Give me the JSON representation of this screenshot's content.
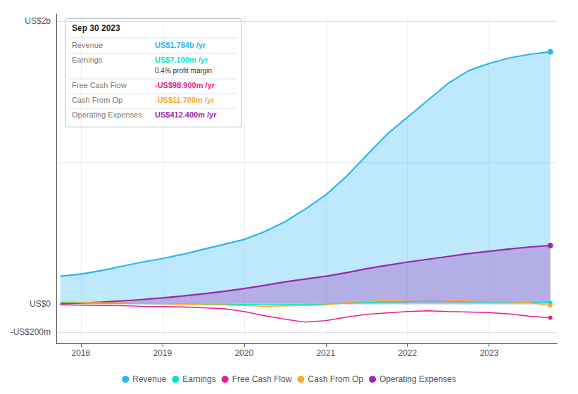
{
  "chart_data": {
    "type": "line",
    "x": [
      2017.75,
      2018.0,
      2018.25,
      2018.5,
      2018.75,
      2019.0,
      2019.25,
      2019.5,
      2019.75,
      2020.0,
      2020.25,
      2020.5,
      2020.75,
      2021.0,
      2021.25,
      2021.5,
      2021.75,
      2022.0,
      2022.25,
      2022.5,
      2022.75,
      2023.0,
      2023.25,
      2023.5,
      2023.75
    ],
    "xlim": [
      2017.7,
      2023.83
    ],
    "xticks": [
      2018,
      2019,
      2020,
      2021,
      2022,
      2023
    ],
    "ylim": [
      -280,
      2050
    ],
    "yticks": [
      {
        "value": 2000,
        "label": "US$2b"
      },
      {
        "value": 1000,
        "label": ""
      },
      {
        "value": 0,
        "label": "US$0"
      },
      {
        "value": -200,
        "label": "-US$200m"
      }
    ],
    "grid": true,
    "legend": "bottom",
    "series": [
      {
        "name": "Revenue",
        "type": "area",
        "color": "#29b6f6",
        "values": [
          195,
          210,
          235,
          265,
          295,
          320,
          350,
          385,
          420,
          455,
          510,
          580,
          670,
          770,
          900,
          1050,
          1200,
          1320,
          1440,
          1560,
          1650,
          1700,
          1740,
          1765,
          1784
        ]
      },
      {
        "name": "Earnings",
        "type": "line",
        "color": "#00e5cc",
        "values": [
          8,
          6,
          4,
          2,
          1,
          0,
          -1,
          -2,
          -3,
          -5,
          -8,
          -6,
          -4,
          -2,
          4,
          8,
          12,
          15,
          18,
          16,
          14,
          12,
          10,
          9,
          7
        ]
      },
      {
        "name": "Free Cash Flow",
        "type": "line",
        "color": "#e91e8c",
        "values": [
          -8,
          -10,
          -12,
          -14,
          -18,
          -20,
          -22,
          -28,
          -35,
          -55,
          -85,
          -110,
          -130,
          -120,
          -95,
          -75,
          -65,
          -55,
          -50,
          -55,
          -58,
          -62,
          -72,
          -88,
          -99
        ]
      },
      {
        "name": "Cash From Op",
        "type": "line",
        "color": "#ffa726",
        "values": [
          12,
          10,
          8,
          5,
          2,
          0,
          -3,
          -6,
          -8,
          -12,
          -18,
          -15,
          -12,
          -8,
          8,
          18,
          22,
          28,
          32,
          26,
          20,
          18,
          14,
          8,
          -12
        ]
      },
      {
        "name": "Operating Expenses",
        "type": "area",
        "color": "#9c27b0",
        "values": [
          0,
          5,
          12,
          20,
          30,
          42,
          55,
          70,
          88,
          108,
          130,
          155,
          175,
          195,
          220,
          248,
          272,
          295,
          315,
          335,
          355,
          372,
          388,
          402,
          412
        ]
      }
    ],
    "annotations": {
      "title": "Sep 30 2023",
      "rows": [
        {
          "label": "Revenue",
          "text": "US$1.784b /yr",
          "color": "#29b6f6"
        },
        {
          "label": "Earnings",
          "text": "US$7.100m /yr",
          "color": "#00e5cc",
          "note": "0.4% profit margin"
        },
        {
          "label": "Free Cash Flow",
          "text": "-US$98.900m /yr",
          "color": "#e91e8c"
        },
        {
          "label": "Cash From Op",
          "text": "-US$11.700m /yr",
          "color": "#ffa726"
        },
        {
          "label": "Operating Expenses",
          "text": "US$412.400m /yr",
          "color": "#9c27b0"
        }
      ]
    }
  }
}
